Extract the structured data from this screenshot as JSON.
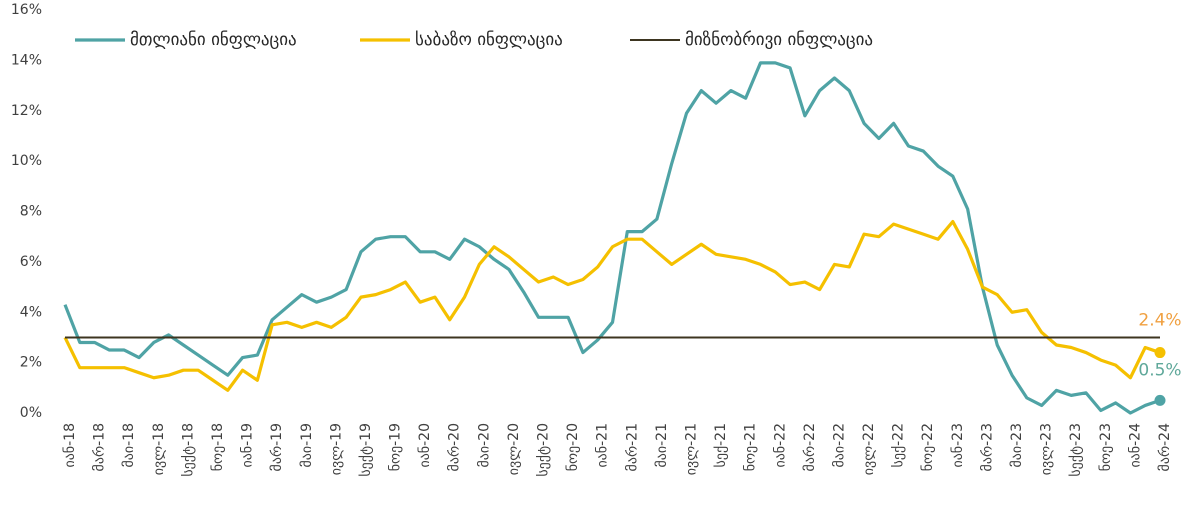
{
  "chart_data": {
    "type": "line",
    "categories": [
      "იან-18",
      null,
      "მარ-18",
      null,
      "მაი-18",
      null,
      "ივლ-18",
      null,
      "სექტ-18",
      null,
      "ნოე-18",
      null,
      "იან-19",
      null,
      "მარ-19",
      null,
      "მაი-19",
      null,
      "ივლ-19",
      null,
      "სექტ-19",
      null,
      "ნოე-19",
      null,
      "იან-20",
      null,
      "მარ-20",
      null,
      "მაი-20",
      null,
      "ივლ-20",
      null,
      "სექტ-20",
      null,
      "ნოე-20",
      null,
      "იან-21",
      null,
      "მარ-21",
      null,
      "მაი-21",
      null,
      "ივლ-21",
      null,
      "სექ-21",
      null,
      "ნოე-21",
      null,
      "იან-22",
      null,
      "მარ-22",
      null,
      "მაი-22",
      null,
      "ივლ-22",
      null,
      "სექ-22",
      null,
      "ნოე-22",
      null,
      "იან-23",
      null,
      "მარ-23",
      null,
      "მაი-23",
      null,
      "ივლ-23",
      null,
      "სექტ-23",
      null,
      "ნოე-23",
      null,
      "იან-24",
      null,
      "მარ-24"
    ],
    "series": [
      {
        "name": "მთლიანი ინფლაცია",
        "color": "#4fa3a5",
        "values": [
          4.3,
          2.8,
          2.8,
          2.5,
          2.5,
          2.2,
          2.8,
          3.1,
          2.7,
          2.3,
          1.9,
          1.5,
          2.2,
          2.3,
          3.7,
          4.2,
          4.7,
          4.4,
          4.6,
          4.9,
          6.4,
          6.9,
          7.0,
          7.0,
          6.4,
          6.4,
          6.1,
          6.9,
          6.6,
          6.1,
          5.7,
          4.8,
          3.8,
          3.8,
          3.8,
          2.4,
          2.9,
          3.6,
          7.2,
          7.2,
          7.7,
          9.9,
          11.9,
          12.8,
          12.3,
          12.8,
          12.5,
          13.9,
          13.9,
          13.7,
          11.8,
          12.8,
          13.3,
          12.8,
          11.5,
          10.9,
          11.5,
          10.6,
          10.4,
          9.8,
          9.4,
          8.1,
          5.0,
          2.7,
          1.5,
          0.6,
          0.3,
          0.9,
          0.7,
          0.8,
          0.1,
          0.4,
          0.0,
          0.3,
          0.5
        ],
        "value_labels": [
          null,
          null,
          null,
          null,
          null,
          null,
          null,
          null,
          null,
          null,
          null,
          null,
          null,
          null,
          null,
          null,
          null,
          null,
          null,
          null,
          null,
          null,
          null,
          null,
          null,
          null,
          null,
          null,
          null,
          null,
          null,
          null,
          null,
          null,
          null,
          null,
          null,
          null,
          null,
          null,
          null,
          null,
          null,
          null,
          null,
          null,
          null,
          null,
          null,
          null,
          null,
          null,
          null,
          null,
          null,
          null,
          null,
          null,
          null,
          null,
          null,
          null,
          null,
          null,
          null,
          null,
          null,
          null,
          null,
          null,
          null,
          null,
          null,
          null,
          "0.5%"
        ],
        "label_color": "#5fa89a"
      },
      {
        "name": "საბაზო ინფლაცია",
        "color": "#f5c000",
        "values": [
          3.0,
          1.8,
          1.8,
          1.8,
          1.8,
          1.6,
          1.4,
          1.5,
          1.7,
          1.7,
          1.3,
          0.9,
          1.7,
          1.3,
          3.5,
          3.6,
          3.4,
          3.6,
          3.4,
          3.8,
          4.6,
          4.7,
          4.9,
          5.2,
          4.4,
          4.6,
          3.7,
          4.6,
          5.9,
          6.6,
          6.2,
          5.7,
          5.2,
          5.4,
          5.1,
          5.3,
          5.8,
          6.6,
          6.9,
          6.9,
          6.4,
          5.9,
          6.3,
          6.7,
          6.3,
          6.2,
          6.1,
          5.9,
          5.6,
          5.1,
          5.2,
          4.9,
          5.9,
          5.8,
          7.1,
          7.0,
          7.5,
          7.3,
          7.1,
          6.9,
          7.6,
          6.5,
          5.0,
          4.7,
          4.0,
          4.1,
          3.2,
          2.7,
          2.6,
          2.4,
          2.1,
          1.9,
          1.4,
          2.6,
          2.4
        ],
        "value_labels": [
          null,
          null,
          null,
          null,
          null,
          null,
          null,
          null,
          null,
          null,
          null,
          null,
          null,
          null,
          null,
          null,
          null,
          null,
          null,
          null,
          null,
          null,
          null,
          null,
          null,
          null,
          null,
          null,
          null,
          null,
          null,
          null,
          null,
          null,
          null,
          null,
          null,
          null,
          null,
          null,
          null,
          null,
          null,
          null,
          null,
          null,
          null,
          null,
          null,
          null,
          null,
          null,
          null,
          null,
          null,
          null,
          null,
          null,
          null,
          null,
          null,
          null,
          null,
          null,
          null,
          null,
          null,
          null,
          null,
          null,
          null,
          null,
          null,
          null,
          "2.4%"
        ],
        "label_color": "#f0a040"
      },
      {
        "name": "მიზნობრივი ინფლაცია",
        "color": "#3d3520",
        "values": [
          3,
          3,
          3,
          3,
          3,
          3,
          3,
          3,
          3,
          3,
          3,
          3,
          3,
          3,
          3,
          3,
          3,
          3,
          3,
          3,
          3,
          3,
          3,
          3,
          3,
          3,
          3,
          3,
          3,
          3,
          3,
          3,
          3,
          3,
          3,
          3,
          3,
          3,
          3,
          3,
          3,
          3,
          3,
          3,
          3,
          3,
          3,
          3,
          3,
          3,
          3,
          3,
          3,
          3,
          3,
          3,
          3,
          3,
          3,
          3,
          3,
          3,
          3,
          3,
          3,
          3,
          3,
          3,
          3,
          3,
          3,
          3,
          3,
          3,
          3
        ]
      }
    ],
    "ylim": [
      0,
      16
    ],
    "yticks": [
      {
        "value": 0,
        "label": "0%"
      },
      {
        "value": 2,
        "label": "2%"
      },
      {
        "value": 4,
        "label": "4%"
      },
      {
        "value": 6,
        "label": "6%"
      },
      {
        "value": 8,
        "label": "8%"
      },
      {
        "value": 10,
        "label": "10%"
      },
      {
        "value": 12,
        "label": "12%"
      },
      {
        "value": 14,
        "label": "14%"
      },
      {
        "value": 16,
        "label": "16%"
      }
    ],
    "grid": false,
    "legend": "top-left"
  }
}
